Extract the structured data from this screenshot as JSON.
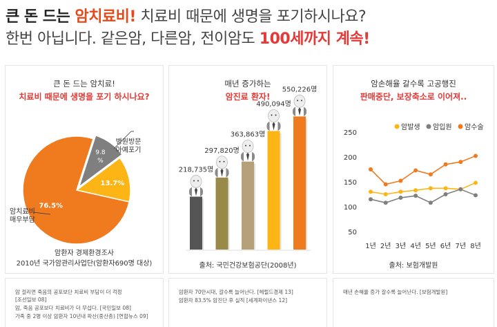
{
  "headline": {
    "line1_a": "큰 돈 드는 ",
    "line1_b": "암치료비!",
    "line1_c": " 치료비 때문에 생명을 포기하시나요?",
    "line2_a": "한번 아닙니다. 같은암, 다른암, 전이암도 ",
    "line2_b": "100세까지 계속!"
  },
  "panel1": {
    "title1": "큰 돈 드는 암치료!",
    "title2": "치료비 때문에 생명을 포기 하시나요?",
    "caption1": "암환자 경제환경조사",
    "caption2": "2010년 국가암관리사업단(암환자690명 대상)",
    "label_visit1": "병원방문",
    "label_visit2": "아예포기",
    "label_burden1": "암치료비",
    "label_burden2": "매우부담",
    "notes": [
      "암 걸리면 죽음의 공포보단 치료비 부담이 더 걱정",
      "[조선일보 08]",
      "암, 죽음 공포보다 치료비가 더 무섭다. [국민일보 08]",
      "가족 중 2명 이상 암환자 10년내 파산(중산층) [연합뉴스 09]"
    ]
  },
  "panel2": {
    "title1": "매년 증가하는",
    "title2": "암진료 환자!",
    "caption": "출처: 국민건강보험공단(2008년)",
    "notes": [
      "암환자 70만시대, 갈수록 늘어난다. [헤럴드경제 13]",
      "암환자 83.5% 암진단 후 실직 [세계파이낸스 12]"
    ]
  },
  "panel3": {
    "title1": "암손해율 갈수록 고공행진",
    "title2": "판매중단, 보장축소로 이어져..",
    "caption": "출처: 보험개발원",
    "notes": [
      "매년 손해율 증가 갈수록 늘어난다. [보험개발원]"
    ]
  },
  "chart_data": [
    {
      "type": "pie",
      "labels": [
        "암치료비 매우부담",
        "병원방문 아예포기",
        ""
      ],
      "values": [
        76.5,
        13.7,
        9.8
      ],
      "value_labels": [
        "76.5%",
        "13.7%",
        "9.8 %"
      ],
      "colors": [
        "#f07a1e",
        "#fcb514",
        "#7f7f7f"
      ]
    },
    {
      "type": "bar",
      "values": [
        218735,
        297820,
        363863,
        490094,
        550226
      ],
      "value_labels": [
        "218,735명",
        "297,820명",
        "363,863명",
        "490,094명",
        "550,226명"
      ],
      "colors": [
        "#555555",
        "#9a8a4a",
        "#b5a07a",
        "#fcb514",
        "#f07a1e"
      ],
      "ylim": [
        0,
        600000
      ]
    },
    {
      "type": "line",
      "categories": [
        "1년",
        "2년",
        "3년",
        "4년",
        "5년",
        "6년",
        "7년",
        "8년"
      ],
      "ylim": [
        50,
        250
      ],
      "yticks": [
        50,
        100,
        150,
        200,
        250
      ],
      "series": [
        {
          "name": "암발생",
          "color": "#fcb514",
          "values": [
            130,
            125,
            130,
            133,
            137,
            137,
            135,
            148
          ]
        },
        {
          "name": "암입원",
          "color": "#7f7f7f",
          "values": [
            115,
            108,
            118,
            122,
            108,
            125,
            135,
            123
          ]
        },
        {
          "name": "암수술",
          "color": "#f07a1e",
          "values": [
            175,
            145,
            152,
            173,
            165,
            185,
            190,
            202
          ]
        }
      ]
    }
  ]
}
